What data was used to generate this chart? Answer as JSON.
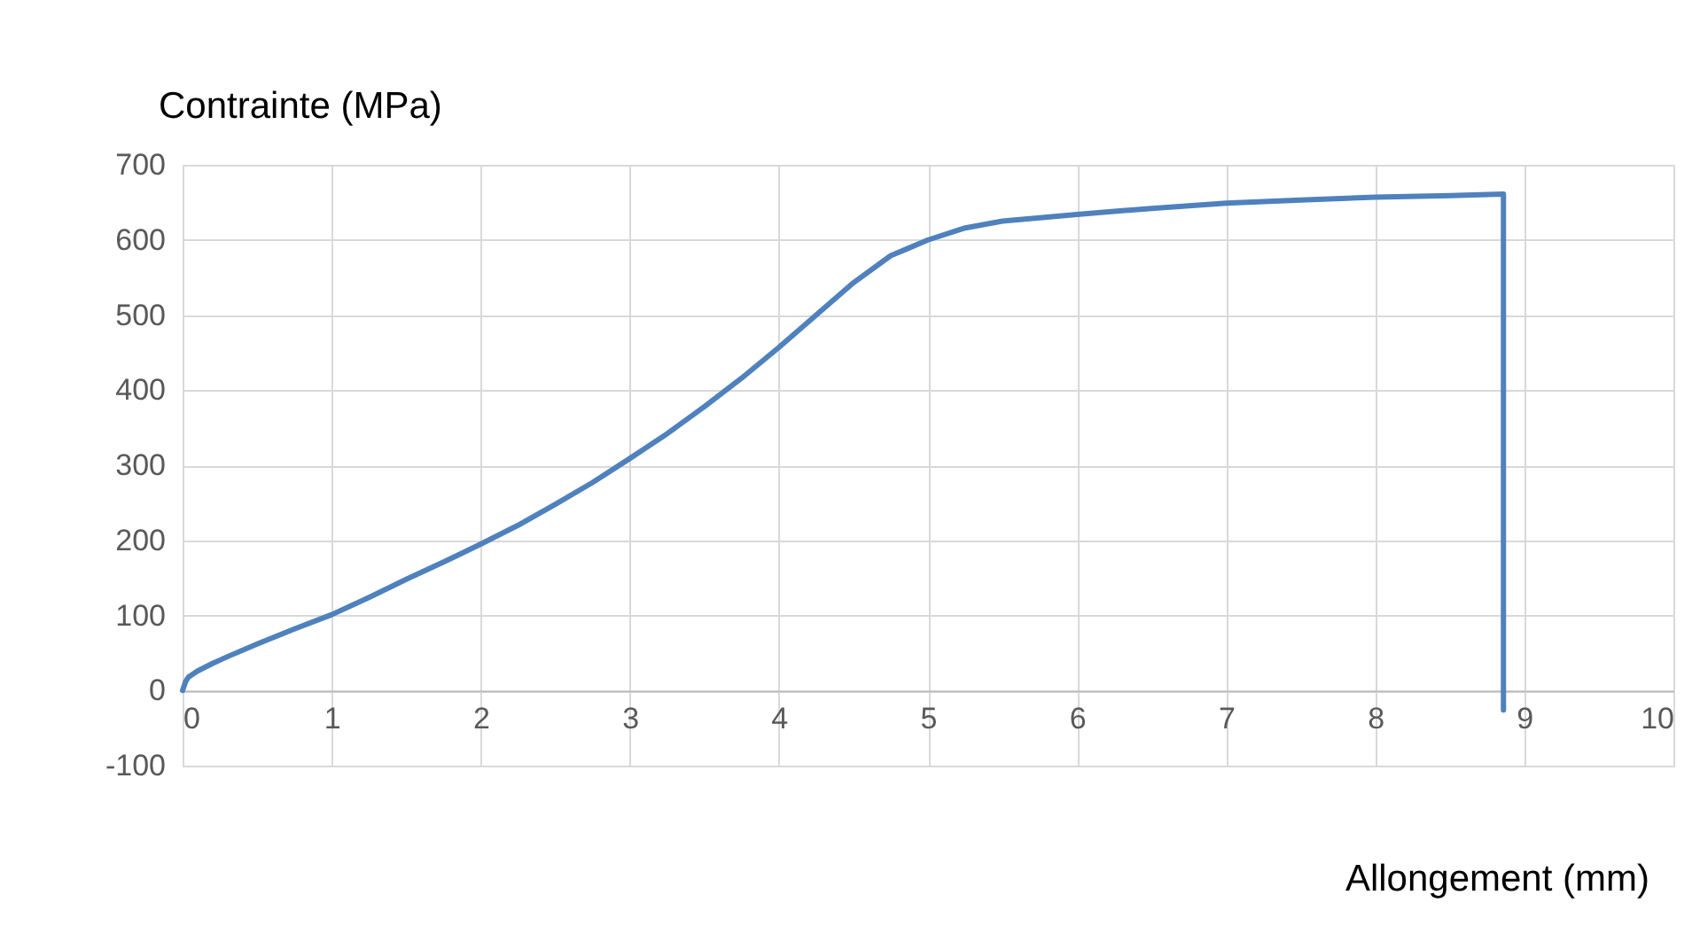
{
  "chart_data": {
    "type": "line",
    "xlabel": "Allongement (mm)",
    "ylabel": "Contrainte (MPa)",
    "x": [
      0,
      0.02,
      0.04,
      0.1,
      0.2,
      0.3,
      0.5,
      0.75,
      1,
      1.25,
      1.5,
      1.75,
      2,
      2.25,
      2.5,
      2.75,
      3,
      3.25,
      3.5,
      3.75,
      4,
      4.25,
      4.5,
      4.75,
      5,
      5.25,
      5.5,
      6,
      6.5,
      7,
      7.5,
      8,
      8.5,
      8.86,
      8.86
    ],
    "series": [
      {
        "color": "#4f81bd",
        "values": [
          0,
          12,
          18,
          26,
          36,
          45,
          62,
          82,
          101,
          124,
          148,
          171,
          195,
          220,
          248,
          277,
          309,
          342,
          378,
          416,
          457,
          500,
          543,
          579,
          600,
          616,
          625,
          634,
          642,
          649,
          653,
          657,
          659,
          661,
          -26
        ]
      }
    ],
    "xlim": [
      0,
      10
    ],
    "xticks": [
      0,
      1,
      2,
      3,
      4,
      5,
      6,
      7,
      8,
      9,
      10
    ],
    "ylim": [
      -100,
      700
    ],
    "yticks": [
      -100,
      0,
      100,
      200,
      300,
      400,
      500,
      600,
      700
    ],
    "grid": true,
    "marker": "none",
    "line_style": "solid"
  }
}
